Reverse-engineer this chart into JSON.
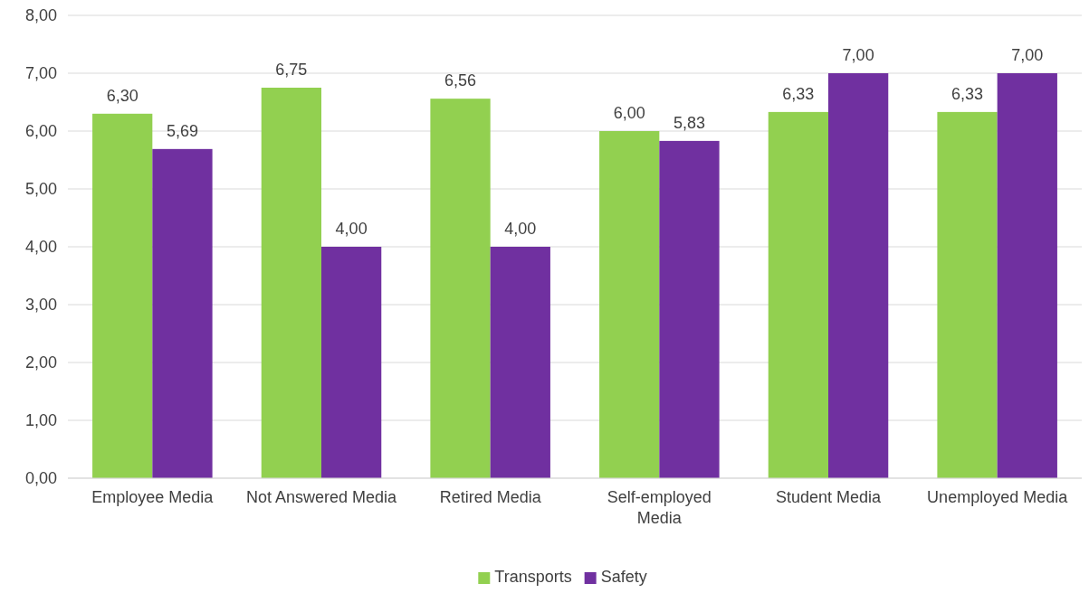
{
  "chart_data": {
    "type": "bar",
    "categories": [
      "Employee Media",
      "Not Answered Media",
      "Retired Media",
      "Self-employed Media",
      "Student Media",
      "Unemployed Media"
    ],
    "series": [
      {
        "name": "Transports",
        "color": "#92d050",
        "values": [
          6.3,
          6.75,
          6.56,
          6.0,
          6.33,
          6.33
        ],
        "value_labels": [
          "6,30",
          "6,75",
          "6,56",
          "6,00",
          "6,33",
          "6,33"
        ]
      },
      {
        "name": "Safety",
        "color": "#7030a0",
        "values": [
          5.69,
          4.0,
          4.0,
          5.83,
          7.0,
          7.0
        ],
        "value_labels": [
          "5,69",
          "4,00",
          "4,00",
          "5,83",
          "7,00",
          "7,00"
        ]
      }
    ],
    "ylim": [
      0,
      8
    ],
    "yticks": [
      {
        "value": 0,
        "label": "0,00"
      },
      {
        "value": 1,
        "label": "1,00"
      },
      {
        "value": 2,
        "label": "2,00"
      },
      {
        "value": 3,
        "label": "3,00"
      },
      {
        "value": 4,
        "label": "4,00"
      },
      {
        "value": 5,
        "label": "5,00"
      },
      {
        "value": 6,
        "label": "6,00"
      },
      {
        "value": 7,
        "label": "7,00"
      },
      {
        "value": 8,
        "label": "8,00"
      }
    ],
    "grid": "y",
    "legend": "bottom"
  }
}
